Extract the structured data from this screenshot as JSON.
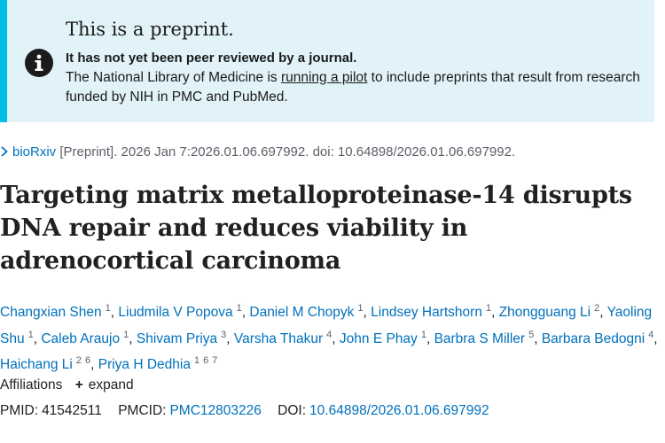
{
  "banner": {
    "heading": "This is a preprint.",
    "strong": "It has not yet been peer reviewed by a journal.",
    "text_before": "The National Library of Medicine is ",
    "link": "running a pilot",
    "text_after": " to include preprints that result from research funded by NIH in PMC and PubMed.",
    "icon": "info-icon"
  },
  "citation": {
    "journal": "bioRxiv",
    "rest": " [Preprint]. 2026 Jan 7:2026.01.06.697992. doi: 10.64898/2026.01.06.697992."
  },
  "title": "Targeting matrix metalloproteinase-14 disrupts DNA repair and reduces viability in adrenocortical carcinoma",
  "authors": [
    {
      "name": "Changxian Shen",
      "affs": [
        "1"
      ]
    },
    {
      "name": "Liudmila V Popova",
      "affs": [
        "1"
      ]
    },
    {
      "name": "Daniel M Chopyk",
      "affs": [
        "1"
      ]
    },
    {
      "name": "Lindsey Hartshorn",
      "affs": [
        "1"
      ]
    },
    {
      "name": "Zhongguang Li",
      "affs": [
        "2"
      ]
    },
    {
      "name": "Yaoling Shu",
      "affs": [
        "1"
      ]
    },
    {
      "name": "Caleb Araujo",
      "affs": [
        "1"
      ]
    },
    {
      "name": "Shivam Priya",
      "affs": [
        "3"
      ]
    },
    {
      "name": "Varsha Thakur",
      "affs": [
        "4"
      ]
    },
    {
      "name": "John E Phay",
      "affs": [
        "1"
      ]
    },
    {
      "name": "Barbra S Miller",
      "affs": [
        "5"
      ]
    },
    {
      "name": "Barbara Bedogni",
      "affs": [
        "4"
      ]
    },
    {
      "name": "Haichang Li",
      "affs": [
        "2",
        "6"
      ]
    },
    {
      "name": "Priya H Dedhia",
      "affs": [
        "1",
        "6",
        "7"
      ]
    }
  ],
  "affiliations": {
    "label": "Affiliations",
    "expand_label": "expand"
  },
  "identifiers": {
    "pmid_label": "PMID:",
    "pmid": "41542511",
    "pmcid_label": "PMCID:",
    "pmcid": "PMC12803226",
    "doi_label": "DOI:",
    "doi": "10.64898/2026.01.06.697992"
  },
  "colors": {
    "banner_bg": "#e1f3f8",
    "banner_border": "#02bfe7",
    "link": "#0071bc"
  }
}
